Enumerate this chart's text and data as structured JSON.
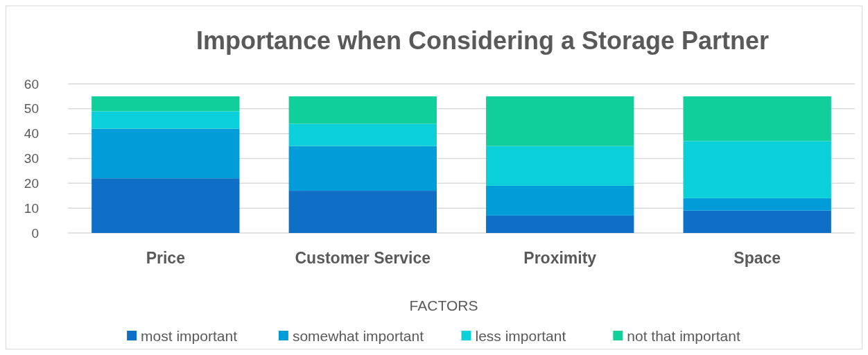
{
  "chart_data": {
    "type": "bar",
    "title": "Importance when Considering a Storage Partner",
    "xlabel": "FACTORS",
    "categories": [
      "Price",
      "Customer Service",
      "Proximity",
      "Space"
    ],
    "stacked": true,
    "ylim": [
      0,
      60
    ],
    "yticks": [
      0,
      10,
      20,
      30,
      40,
      50,
      60
    ],
    "grid": "y",
    "legend": "bottom",
    "series": [
      {
        "name": "most important",
        "color": "#0f6fc6",
        "values": [
          22,
          17,
          7,
          9
        ]
      },
      {
        "name": "somewhat important",
        "color": "#009dd9",
        "values": [
          20,
          18,
          12,
          5
        ]
      },
      {
        "name": "less important",
        "color": "#0bd0d9",
        "values": [
          7,
          9,
          16,
          23
        ]
      },
      {
        "name": "not that important",
        "color": "#10cf9b",
        "values": [
          6,
          11,
          20,
          18
        ]
      }
    ]
  }
}
